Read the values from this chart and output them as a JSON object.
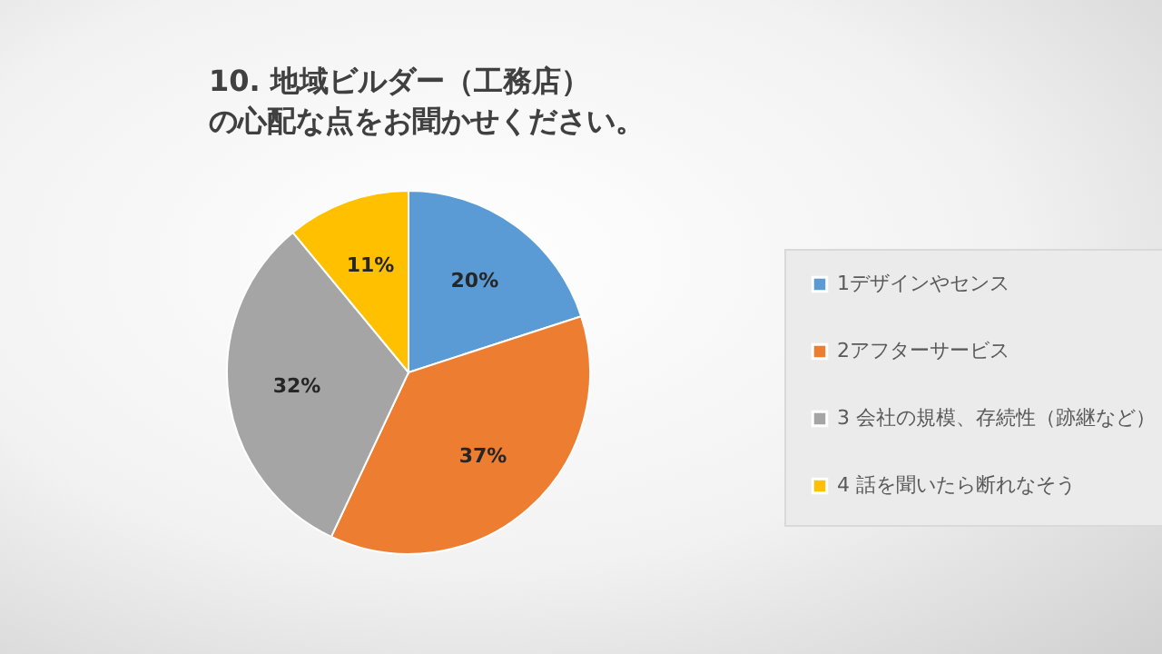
{
  "chart_data": {
    "type": "pie",
    "title": "10. 地域ビルダー（工務店）の心配な点をお聞かせください。",
    "categories": [
      "1デザインやセンス",
      "2アフターサービス",
      "3 会社の規模、存続性（跡継など）",
      "4 話を聞いたら断れなそう"
    ],
    "values": [
      20,
      37,
      32,
      11
    ],
    "colors": [
      "#5b9bd5",
      "#ed7d31",
      "#a5a5a5",
      "#ffc000"
    ],
    "value_labels": [
      "20%",
      "37%",
      "32%",
      "11%"
    ],
    "legend": "right"
  }
}
